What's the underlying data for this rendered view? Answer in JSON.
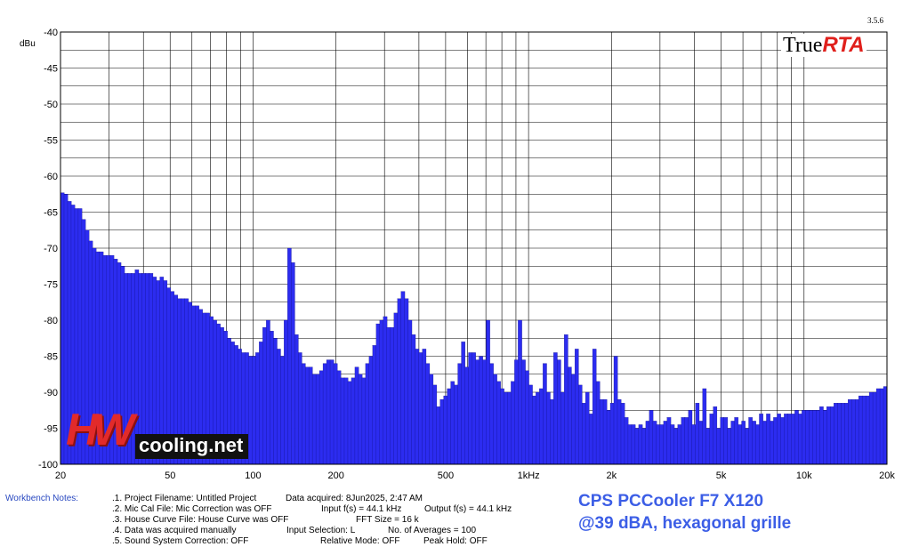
{
  "version": "3.5.6",
  "logo": {
    "part1": "True",
    "part2": "RTA"
  },
  "chart_data": {
    "type": "bar",
    "ylabel": "dBu",
    "ylim": [
      -100,
      -40
    ],
    "yticks": [
      -40,
      -45,
      -50,
      -55,
      -60,
      -65,
      -70,
      -75,
      -80,
      -85,
      -90,
      -95,
      -100
    ],
    "xscale": "log",
    "xlim": [
      20,
      20000
    ],
    "xticks": [
      {
        "value": 20,
        "label": "20"
      },
      {
        "value": 50,
        "label": "50"
      },
      {
        "value": 100,
        "label": "100"
      },
      {
        "value": 200,
        "label": "200"
      },
      {
        "value": 500,
        "label": "500"
      },
      {
        "value": 1000,
        "label": "1kHz"
      },
      {
        "value": 2000,
        "label": "2k"
      },
      {
        "value": 5000,
        "label": "5k"
      },
      {
        "value": 10000,
        "label": "10k"
      },
      {
        "value": 20000,
        "label": "20k"
      }
    ],
    "grid": true,
    "bar_color": "#2c2cf0",
    "values": [
      -62.3,
      -62.5,
      -63.5,
      -64,
      -64.5,
      -64.5,
      -66,
      -67.5,
      -69,
      -70,
      -70.5,
      -70.5,
      -71,
      -71,
      -71,
      -71.5,
      -72,
      -72.5,
      -73.5,
      -73.5,
      -73.5,
      -73,
      -73.5,
      -73.5,
      -73.5,
      -73.5,
      -74,
      -74.5,
      -74,
      -74.5,
      -75.5,
      -76,
      -76.5,
      -77,
      -77,
      -77,
      -77.5,
      -78,
      -78,
      -78.5,
      -79,
      -79,
      -79.5,
      -80,
      -80.5,
      -81,
      -81.5,
      -82.5,
      -83,
      -83.5,
      -84,
      -84.5,
      -84.5,
      -85,
      -85,
      -84.5,
      -83,
      -81,
      -80,
      -81.5,
      -82.5,
      -84,
      -85,
      -80,
      -70,
      -72,
      -82,
      -84.5,
      -86,
      -86.5,
      -86.5,
      -87.5,
      -87.5,
      -87,
      -86,
      -85.5,
      -85.5,
      -86,
      -87,
      -88,
      -88,
      -88.5,
      -88,
      -86.5,
      -87.5,
      -88,
      -86,
      -85,
      -83.5,
      -80.5,
      -80,
      -79.5,
      -81,
      -81,
      -79,
      -77,
      -76,
      -77,
      -80,
      -82,
      -84,
      -84.5,
      -84,
      -86,
      -87.5,
      -89,
      -92,
      -91,
      -90.5,
      -89.5,
      -88.5,
      -89,
      -86,
      -83,
      -86.5,
      -84.5,
      -84.5,
      -85.5,
      -85,
      -85.5,
      -80,
      -86,
      -87.5,
      -88.5,
      -89.5,
      -90,
      -90,
      -88.5,
      -85.5,
      -80,
      -85.5,
      -87,
      -89,
      -90.5,
      -90,
      -89.5,
      -86,
      -90,
      -91,
      -84.5,
      -85.5,
      -90,
      -82,
      -86.5,
      -87.5,
      -84,
      -89,
      -91.5,
      -90,
      -93,
      -84,
      -88.5,
      -91,
      -91,
      -92.5,
      -91.5,
      -85,
      -91,
      -91.5,
      -93.5,
      -94.5,
      -94.5,
      -95,
      -94.5,
      -95,
      -94,
      -92.5,
      -94,
      -94.5,
      -94.5,
      -94,
      -93.5,
      -94.5,
      -95,
      -94.5,
      -93.5,
      -93.5,
      -92.5,
      -94.5,
      -91.5,
      -94,
      -89.5,
      -95,
      -93,
      -92,
      -95,
      -93.5,
      -93.5,
      -95,
      -94,
      -93.5,
      -94.5,
      -94,
      -95,
      -93.5,
      -94,
      -94.5,
      -93,
      -94,
      -93,
      -94,
      -93.5,
      -93,
      -93.5,
      -93,
      -93,
      -93,
      -92.5,
      -93,
      -92.5,
      -92.5,
      -92.5,
      -92.5,
      -92.5,
      -92,
      -92.5,
      -92,
      -92,
      -91.5,
      -91.5,
      -91.5,
      -91.5,
      -91,
      -91,
      -91,
      -90.5,
      -90.5,
      -90.5,
      -90,
      -90,
      -89.5,
      -89.5,
      -89.2
    ]
  },
  "notes": {
    "label": "Workbench Notes:",
    "lines": [
      {
        "a": ".1. Project Filename: Untitled Project",
        "b": "Data acquired: 8Jun2025, 2:47 AM",
        "c": ""
      },
      {
        "a": ".2. Mic Cal File: Mic Correction was OFF",
        "b": "Input f(s) = 44.1 kHz",
        "c": "Output f(s) = 44.1 kHz"
      },
      {
        "a": ".3. House Curve File: House Curve was OFF",
        "b": "FFT Size = 16 k",
        "c": ""
      },
      {
        "a": ".4. Data was acquired manually",
        "b": "Input Selection: L",
        "c": "No. of Averages = 100"
      },
      {
        "a": ".5. Sound System Correction: OFF",
        "b": "Relative Mode:  OFF",
        "c": "Peak Hold: OFF"
      }
    ]
  },
  "caption": {
    "line1": "CPS PCCooler F7 X120",
    "line2": "@39 dBA, hexagonal grille"
  },
  "watermark": {
    "mark": "HW",
    "text": "cooling.net"
  }
}
